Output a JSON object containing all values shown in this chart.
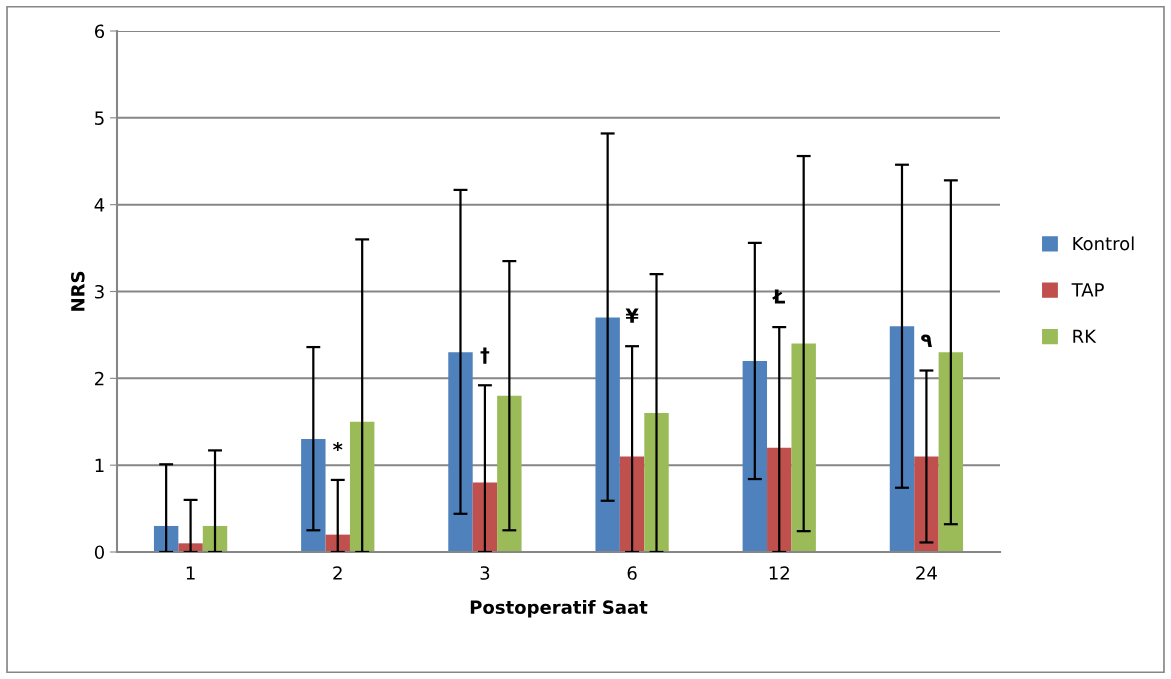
{
  "chart_data": {
    "type": "bar",
    "xlabel": "Postoperatif Saat",
    "ylabel": "NRS",
    "categories": [
      "1",
      "2",
      "3",
      "6",
      "12",
      "24"
    ],
    "series": [
      {
        "name": "Kontrol",
        "color": "#4f81bd",
        "values": [
          0.3,
          1.3,
          2.3,
          2.7,
          2.2,
          2.6
        ],
        "errors": [
          [
            0,
            1.01
          ],
          [
            0.25,
            2.36
          ],
          [
            0.44,
            4.17
          ],
          [
            0.59,
            4.82
          ],
          [
            0.84,
            3.56
          ],
          [
            0.74,
            4.46
          ]
        ]
      },
      {
        "name": "TAP",
        "color": "#c0504d",
        "values": [
          0.1,
          0.2,
          0.8,
          1.1,
          1.2,
          1.1
        ],
        "errors": [
          [
            0,
            0.6
          ],
          [
            0,
            0.83
          ],
          [
            0,
            1.92
          ],
          [
            0,
            2.37
          ],
          [
            0,
            2.59
          ],
          [
            0.11,
            2.09
          ]
        ]
      },
      {
        "name": "RK",
        "color": "#9bbb59",
        "values": [
          0.3,
          1.5,
          1.8,
          1.6,
          2.4,
          2.3
        ],
        "errors": [
          [
            0,
            1.17
          ],
          [
            0,
            3.6
          ],
          [
            0.25,
            3.35
          ],
          [
            0,
            3.2
          ],
          [
            0.24,
            4.56
          ],
          [
            0.32,
            4.28
          ]
        ]
      }
    ],
    "annotations": [
      "*",
      "†",
      "¥",
      "Ł",
      "٩"
    ],
    "ylim": [
      0,
      6
    ],
    "yticks": [
      0,
      1,
      2,
      3,
      4,
      5,
      6
    ],
    "grid": "y",
    "legend": "right"
  }
}
